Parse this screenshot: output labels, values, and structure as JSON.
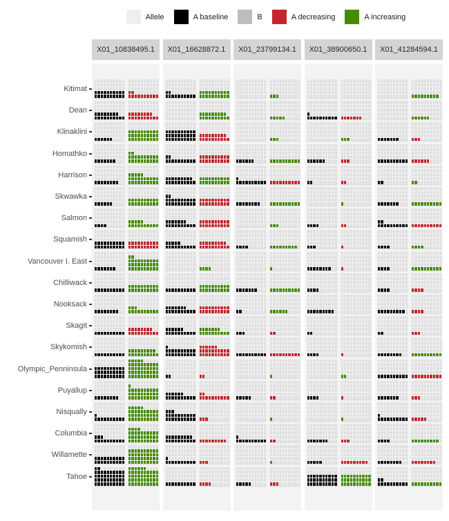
{
  "legend": {
    "items": [
      {
        "label": "Allele",
        "color": "#efefef"
      },
      {
        "label": "A baseline",
        "color": "#000000"
      },
      {
        "label": "B",
        "color": "#bdbdbd"
      },
      {
        "label": "A decreasing",
        "color": "#c1272d"
      },
      {
        "label": "A increasing",
        "color": "#458b00"
      }
    ]
  },
  "chart_data": {
    "type": "waffle",
    "description": "Faceted waffle grids; each population x locus cell holds two 10x5 waffles: left = A baseline (black) filled squares, right = change allele filled squares colored by direction (dec = A decreasing red, inc = A increasing green). Unfilled squares are the light-gray Allele background.",
    "facets": [
      "X01_10838495.1",
      "X01_16628872.1",
      "X01_23799134.1",
      "X01_38900650.1",
      "X01_41284594.1"
    ],
    "rows": [
      "Kitimat",
      "Dean",
      "Klinaklini",
      "Homathko",
      "Harrison",
      "Skwawka",
      "Salmon",
      "Squamish",
      "Vancouver I. East",
      "Chilliwack",
      "Nooksack",
      "Skagit",
      "Skykomish",
      "Olympic_Penninsula",
      "Puyallup",
      "Nisqually",
      "Columbia",
      "Willamette",
      "Tahoe"
    ],
    "grid": {
      "columns": 10,
      "rows": 5,
      "squares_per_waffle": 50
    },
    "cell_format": "[baseline_filled, change_filled, change_direction]",
    "colors": {
      "baseline": "#0d0d0d",
      "decreasing": "#c1272d",
      "increasing": "#458b00",
      "empty": "#e0e0e0",
      "panel": "#f3f3f3",
      "strip": "#d4d4d4"
    },
    "cells": [
      [
        [
          20,
          12,
          "dec"
        ],
        [
          12,
          20,
          "inc"
        ],
        [
          0,
          3,
          "inc"
        ],
        [
          0,
          0,
          "inc"
        ],
        [
          0,
          9,
          "inc"
        ]
      ],
      [
        [
          18,
          18,
          "dec"
        ],
        [
          0,
          19,
          "inc"
        ],
        [
          0,
          5,
          "inc"
        ],
        [
          11,
          7,
          "dec"
        ],
        [
          0,
          6,
          "inc"
        ]
      ],
      [
        [
          6,
          30,
          "inc"
        ],
        [
          30,
          19,
          "dec"
        ],
        [
          0,
          3,
          "inc"
        ],
        [
          0,
          3,
          "inc"
        ],
        [
          7,
          3,
          "dec"
        ]
      ],
      [
        [
          7,
          22,
          "inc"
        ],
        [
          12,
          20,
          "dec"
        ],
        [
          6,
          10,
          "inc"
        ],
        [
          6,
          3,
          "dec"
        ],
        [
          10,
          6,
          "dec"
        ]
      ],
      [
        [
          8,
          25,
          "inc"
        ],
        [
          19,
          20,
          "inc"
        ],
        [
          11,
          10,
          "dec"
        ],
        [
          2,
          2,
          "dec"
        ],
        [
          2,
          2,
          "inc"
        ]
      ],
      [
        [
          6,
          20,
          "inc"
        ],
        [
          22,
          20,
          "dec"
        ],
        [
          8,
          10,
          "inc"
        ],
        [
          0,
          1,
          "inc"
        ],
        [
          7,
          10,
          "inc"
        ]
      ],
      [
        [
          4,
          15,
          "inc"
        ],
        [
          17,
          20,
          "dec"
        ],
        [
          0,
          3,
          "inc"
        ],
        [
          4,
          2,
          "dec"
        ],
        [
          12,
          10,
          "dec"
        ]
      ],
      [
        [
          20,
          20,
          "dec"
        ],
        [
          15,
          19,
          "dec"
        ],
        [
          4,
          9,
          "inc"
        ],
        [
          3,
          1,
          "dec"
        ],
        [
          4,
          4,
          "inc"
        ]
      ],
      [
        [
          7,
          32,
          "inc"
        ],
        [
          0,
          4,
          "inc"
        ],
        [
          0,
          1,
          "inc"
        ],
        [
          8,
          1,
          "dec"
        ],
        [
          4,
          10,
          "inc"
        ]
      ],
      [
        [
          10,
          20,
          "inc"
        ],
        [
          10,
          20,
          "inc"
        ],
        [
          7,
          10,
          "inc"
        ],
        [
          4,
          0,
          "inc"
        ],
        [
          4,
          4,
          "dec"
        ]
      ],
      [
        [
          8,
          13,
          "inc"
        ],
        [
          17,
          20,
          "dec"
        ],
        [
          2,
          6,
          "inc"
        ],
        [
          9,
          0,
          "inc"
        ],
        [
          9,
          4,
          "dec"
        ]
      ],
      [
        [
          10,
          18,
          "dec"
        ],
        [
          16,
          17,
          "inc"
        ],
        [
          3,
          2,
          "dec"
        ],
        [
          2,
          0,
          "inc"
        ],
        [
          2,
          3,
          "dec"
        ]
      ],
      [
        [
          10,
          19,
          "inc"
        ],
        [
          21,
          26,
          "dec"
        ],
        [
          10,
          10,
          "dec"
        ],
        [
          4,
          1,
          "dec"
        ],
        [
          8,
          10,
          "inc"
        ]
      ],
      [
        [
          30,
          45,
          "inc"
        ],
        [
          2,
          2,
          "dec"
        ],
        [
          0,
          1,
          "inc"
        ],
        [
          0,
          2,
          "inc"
        ],
        [
          10,
          10,
          "dec"
        ]
      ],
      [
        [
          8,
          31,
          "inc"
        ],
        [
          16,
          12,
          "dec"
        ],
        [
          5,
          2,
          "dec"
        ],
        [
          4,
          1,
          "dec"
        ],
        [
          7,
          3,
          "dec"
        ]
      ],
      [
        [
          11,
          35,
          "inc"
        ],
        [
          23,
          3,
          "dec"
        ],
        [
          0,
          1,
          "inc"
        ],
        [
          0,
          1,
          "inc"
        ],
        [
          11,
          5,
          "dec"
        ]
      ],
      [
        [
          13,
          34,
          "inc"
        ],
        [
          19,
          9,
          "dec"
        ],
        [
          11,
          2,
          "dec"
        ],
        [
          7,
          3,
          "dec"
        ],
        [
          4,
          9,
          "inc"
        ]
      ],
      [
        [
          20,
          40,
          "inc"
        ],
        [
          11,
          3,
          "dec"
        ],
        [
          0,
          1,
          "inc"
        ],
        [
          5,
          9,
          "dec"
        ],
        [
          8,
          8,
          "dec"
        ]
      ],
      [
        [
          42,
          46,
          "inc"
        ],
        [
          10,
          4,
          "dec"
        ],
        [
          5,
          3,
          "dec"
        ],
        [
          30,
          30,
          "inc"
        ],
        [
          12,
          10,
          "inc"
        ]
      ]
    ]
  }
}
